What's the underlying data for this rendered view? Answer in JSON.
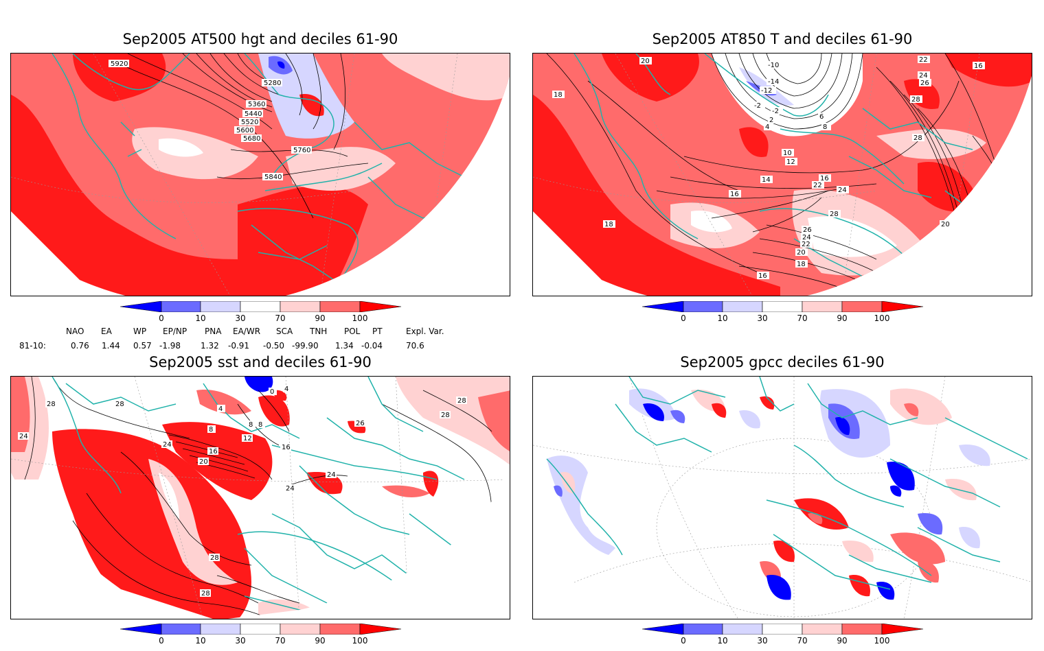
{
  "panels": {
    "hgt": {
      "title": "Sep2005 AT500 hgt and deciles 61-90",
      "contour_labels": [
        "5920",
        "5280",
        "5360",
        "5440",
        "5520",
        "5600",
        "5680",
        "5760",
        "5840"
      ]
    },
    "t850": {
      "title": "Sep2005 AT850 T and deciles 61-90",
      "contour_labels": [
        "20",
        "18",
        "-10",
        "-14",
        "-12",
        "-2",
        "-2",
        "2",
        "4",
        "6",
        "8",
        "10",
        "12",
        "14",
        "16",
        "16",
        "22",
        "24",
        "28",
        "26",
        "24",
        "22",
        "20",
        "18",
        "16",
        "18",
        "20",
        "22",
        "24",
        "26",
        "28",
        "28",
        "16"
      ]
    },
    "sst": {
      "title": "Sep2005 sst and deciles 61-90",
      "contour_labels": [
        "28",
        "28",
        "24",
        "24",
        "20",
        "16",
        "12",
        "8",
        "8",
        "8",
        "4",
        "0",
        "4",
        "24",
        "24",
        "16",
        "28",
        "28",
        "28",
        "28",
        "26"
      ]
    },
    "gpcc": {
      "title": "Sep2005 gpcc deciles 61-90"
    }
  },
  "colorbar": {
    "ticks": [
      "0",
      "10",
      "30",
      "70",
      "90",
      "100"
    ],
    "colors": [
      "#0000ff",
      "#6b6bff",
      "#d6d6ff",
      "#ffffff",
      "#ffd2d2",
      "#ff6b6b",
      "#ff0000"
    ]
  },
  "teleconnections": {
    "row_label": "81-10:",
    "headers": [
      "NAO",
      "EA",
      "WP",
      "EP/NP",
      "PNA",
      "EA/WR",
      "SCA",
      "TNH",
      "POL",
      "PT",
      "Expl. Var."
    ],
    "values": [
      "0.76",
      "1.44",
      "0.57",
      "-1.98",
      "1.32",
      "-0.91",
      "-0.50",
      "-99.90",
      "1.34",
      "-0.04",
      "70.6"
    ]
  },
  "colors": {
    "coast": "#20b2aa",
    "strong_red": "#ff1a1a",
    "mid_red": "#ff6b6b",
    "light_red": "#ffd2d2",
    "light_blue": "#d6d6ff",
    "mid_blue": "#6b6bff",
    "strong_blue": "#0000ff"
  }
}
